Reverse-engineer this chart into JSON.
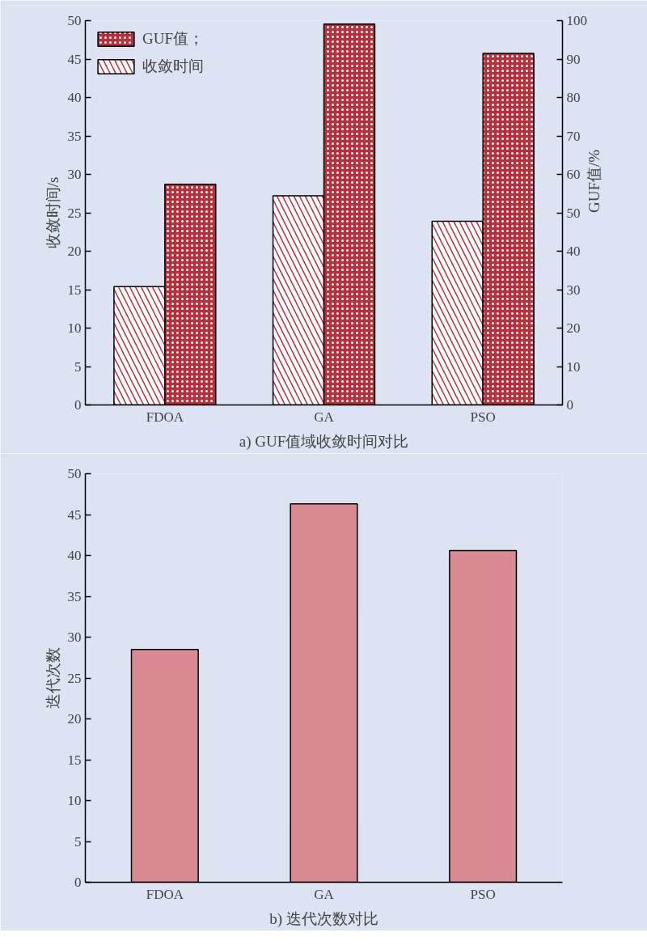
{
  "chart_data": [
    {
      "type": "bar",
      "title": "a) GUF值域收敛时间对比",
      "ylabel": "收敛时间/s",
      "y2label": "GUF值/%",
      "categories": [
        "FDOA",
        "GA",
        "PSO"
      ],
      "series": [
        {
          "name": "收敛时间",
          "color": "#ffffff",
          "values": [
            15.4,
            27.2,
            23.9
          ]
        },
        {
          "name": "GUF值；",
          "color": "#b5303a",
          "axis": "y2",
          "values": [
            57.4,
            99.1,
            91.5
          ]
        }
      ],
      "ylim": [
        0,
        50
      ],
      "yticks": [
        0,
        5,
        10,
        15,
        20,
        25,
        30,
        35,
        40,
        45,
        50
      ],
      "y2lim": [
        0,
        100
      ],
      "y2ticks": [
        0,
        10,
        20,
        30,
        40,
        50,
        60,
        70,
        80,
        90,
        100
      ],
      "legend": "top left",
      "grid": false
    },
    {
      "type": "bar",
      "title": "b) 迭代次数对比",
      "ylabel": "迭代次数",
      "categories": [
        "FDOA",
        "GA",
        "PSO"
      ],
      "series": [
        {
          "color": "#d98a92",
          "values": [
            28.5,
            46.3,
            40.6
          ]
        }
      ],
      "ylim": [
        0,
        50
      ],
      "yticks": [
        0,
        5,
        10,
        15,
        20,
        25,
        30,
        35,
        40,
        45,
        50
      ],
      "grid": false
    }
  ]
}
